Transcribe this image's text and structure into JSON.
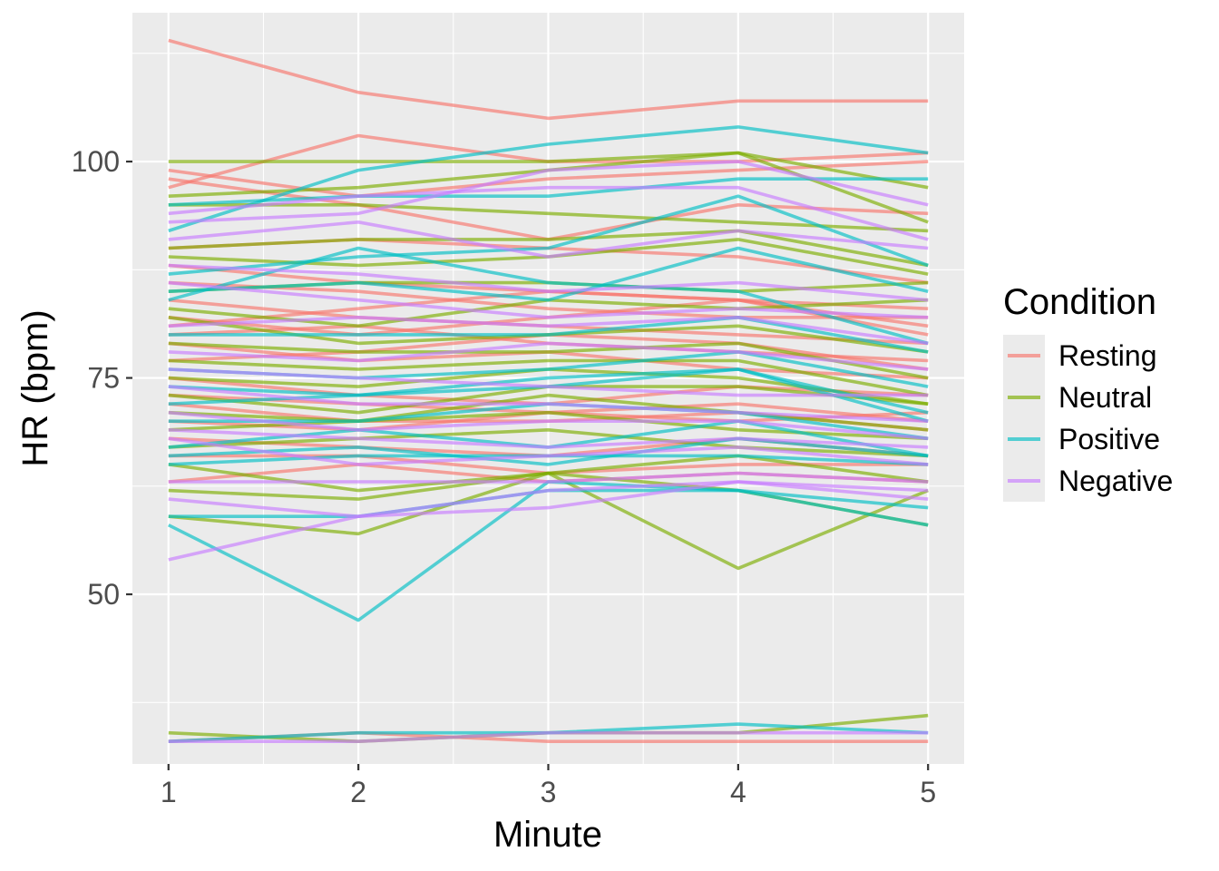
{
  "chart_data": {
    "type": "line",
    "title": "",
    "xlabel": "Minute",
    "ylabel": "HR (bpm)",
    "x": [
      1,
      2,
      3,
      4,
      5
    ],
    "xlim": [
      0.81,
      5.19
    ],
    "ylim": [
      30.4,
      117.2
    ],
    "xticks": [
      1,
      2,
      3,
      4,
      5
    ],
    "yticks": [
      50,
      75,
      100
    ],
    "grid": true,
    "legend": {
      "title": "Condition",
      "position": "right",
      "entries": [
        "Resting",
        "Neutral",
        "Positive",
        "Negative"
      ]
    },
    "colors": {
      "Resting": "#F8766D",
      "Neutral": "#7CAE00",
      "Positive": "#00BFC4",
      "Negative": "#C77CFF"
    },
    "series": [
      {
        "group": "Resting",
        "values": [
          114,
          108,
          105,
          107,
          107
        ]
      },
      {
        "group": "Resting",
        "values": [
          97,
          103,
          100,
          100,
          101
        ]
      },
      {
        "group": "Resting",
        "values": [
          99,
          96,
          98,
          99,
          100
        ]
      },
      {
        "group": "Resting",
        "values": [
          98,
          95,
          91,
          95,
          94
        ]
      },
      {
        "group": "Resting",
        "values": [
          90,
          91,
          90,
          89,
          86
        ]
      },
      {
        "group": "Resting",
        "values": [
          88,
          86,
          85,
          84,
          83
        ]
      },
      {
        "group": "Resting",
        "values": [
          86,
          85,
          83,
          82,
          82
        ]
      },
      {
        "group": "Resting",
        "values": [
          84,
          82,
          81,
          80,
          79
        ]
      },
      {
        "group": "Resting",
        "values": [
          82,
          80,
          82,
          84,
          81
        ]
      },
      {
        "group": "Resting",
        "values": [
          80,
          81,
          79,
          78,
          77
        ]
      },
      {
        "group": "Resting",
        "values": [
          79,
          77,
          78,
          76,
          75
        ]
      },
      {
        "group": "Resting",
        "values": [
          77,
          78,
          80,
          79,
          76
        ]
      },
      {
        "group": "Resting",
        "values": [
          75,
          73,
          72,
          74,
          73
        ]
      },
      {
        "group": "Resting",
        "values": [
          73,
          72,
          71,
          70,
          71
        ]
      },
      {
        "group": "Resting",
        "values": [
          72,
          70,
          70,
          71,
          69
        ]
      },
      {
        "group": "Resting",
        "values": [
          70,
          69,
          71,
          72,
          70
        ]
      },
      {
        "group": "Resting",
        "values": [
          68,
          67,
          66,
          68,
          66
        ]
      },
      {
        "group": "Resting",
        "values": [
          66,
          66,
          64,
          65,
          65
        ]
      },
      {
        "group": "Resting",
        "values": [
          63,
          65,
          63,
          64,
          63
        ]
      },
      {
        "group": "Resting",
        "values": [
          81,
          83,
          85,
          84,
          80
        ]
      },
      {
        "group": "Resting",
        "values": [
          33,
          34,
          33,
          33,
          33
        ]
      },
      {
        "group": "Neutral",
        "values": [
          100,
          100,
          100,
          101,
          97
        ]
      },
      {
        "group": "Neutral",
        "values": [
          96,
          97,
          99,
          101,
          93
        ]
      },
      {
        "group": "Neutral",
        "values": [
          95,
          95,
          94,
          93,
          92
        ]
      },
      {
        "group": "Neutral",
        "values": [
          90,
          91,
          91,
          92,
          88
        ]
      },
      {
        "group": "Neutral",
        "values": [
          89,
          88,
          89,
          91,
          87
        ]
      },
      {
        "group": "Neutral",
        "values": [
          85,
          86,
          86,
          85,
          86
        ]
      },
      {
        "group": "Neutral",
        "values": [
          83,
          81,
          84,
          83,
          84
        ]
      },
      {
        "group": "Neutral",
        "values": [
          82,
          79,
          80,
          81,
          78
        ]
      },
      {
        "group": "Neutral",
        "values": [
          79,
          78,
          78,
          79,
          75
        ]
      },
      {
        "group": "Neutral",
        "values": [
          77,
          76,
          77,
          77,
          73
        ]
      },
      {
        "group": "Neutral",
        "values": [
          75,
          74,
          76,
          75,
          72
        ]
      },
      {
        "group": "Neutral",
        "values": [
          73,
          71,
          74,
          74,
          72
        ]
      },
      {
        "group": "Neutral",
        "values": [
          71,
          70,
          73,
          71,
          69
        ]
      },
      {
        "group": "Neutral",
        "values": [
          69,
          70,
          71,
          69,
          68
        ]
      },
      {
        "group": "Neutral",
        "values": [
          67,
          68,
          69,
          67,
          66
        ]
      },
      {
        "group": "Neutral",
        "values": [
          65,
          62,
          64,
          66,
          63
        ]
      },
      {
        "group": "Neutral",
        "values": [
          62,
          61,
          64,
          62,
          58
        ]
      },
      {
        "group": "Neutral",
        "values": [
          59,
          57,
          64,
          53,
          62
        ]
      },
      {
        "group": "Neutral",
        "values": [
          34,
          33,
          34,
          34,
          36
        ]
      },
      {
        "group": "Positive",
        "values": [
          92,
          99,
          102,
          104,
          101
        ]
      },
      {
        "group": "Positive",
        "values": [
          95,
          96,
          96,
          98,
          98
        ]
      },
      {
        "group": "Positive",
        "values": [
          87,
          89,
          90,
          96,
          88
        ]
      },
      {
        "group": "Positive",
        "values": [
          85,
          86,
          84,
          90,
          85
        ]
      },
      {
        "group": "Positive",
        "values": [
          84,
          90,
          86,
          85,
          79
        ]
      },
      {
        "group": "Positive",
        "values": [
          80,
          80,
          80,
          82,
          78
        ]
      },
      {
        "group": "Positive",
        "values": [
          76,
          75,
          76,
          78,
          74
        ]
      },
      {
        "group": "Positive",
        "values": [
          74,
          73,
          75,
          76,
          71
        ]
      },
      {
        "group": "Positive",
        "values": [
          72,
          73,
          74,
          76,
          70
        ]
      },
      {
        "group": "Positive",
        "values": [
          70,
          70,
          72,
          71,
          68
        ]
      },
      {
        "group": "Positive",
        "values": [
          67,
          69,
          67,
          70,
          66
        ]
      },
      {
        "group": "Positive",
        "values": [
          66,
          67,
          65,
          68,
          66
        ]
      },
      {
        "group": "Positive",
        "values": [
          65,
          66,
          66,
          66,
          65
        ]
      },
      {
        "group": "Positive",
        "values": [
          59,
          59,
          62,
          62,
          58
        ]
      },
      {
        "group": "Positive",
        "values": [
          58,
          47,
          63,
          62,
          60
        ]
      },
      {
        "group": "Positive",
        "values": [
          33,
          34,
          34,
          35,
          34
        ]
      },
      {
        "group": "Negative",
        "values": [
          93,
          94,
          99,
          100,
          95
        ]
      },
      {
        "group": "Negative",
        "values": [
          94,
          96,
          97,
          97,
          91
        ]
      },
      {
        "group": "Negative",
        "values": [
          91,
          93,
          89,
          92,
          90
        ]
      },
      {
        "group": "Negative",
        "values": [
          88,
          87,
          85,
          86,
          84
        ]
      },
      {
        "group": "Negative",
        "values": [
          86,
          84,
          82,
          83,
          82
        ]
      },
      {
        "group": "Negative",
        "values": [
          81,
          82,
          81,
          82,
          79
        ]
      },
      {
        "group": "Negative",
        "values": [
          78,
          77,
          79,
          78,
          76
        ]
      },
      {
        "group": "Negative",
        "values": [
          76,
          75,
          74,
          73,
          73
        ]
      },
      {
        "group": "Negative",
        "values": [
          74,
          72,
          72,
          71,
          70
        ]
      },
      {
        "group": "Negative",
        "values": [
          71,
          69,
          70,
          70,
          68
        ]
      },
      {
        "group": "Negative",
        "values": [
          69,
          68,
          67,
          68,
          67
        ]
      },
      {
        "group": "Negative",
        "values": [
          68,
          65,
          66,
          67,
          65
        ]
      },
      {
        "group": "Negative",
        "values": [
          63,
          63,
          63,
          64,
          63
        ]
      },
      {
        "group": "Negative",
        "values": [
          61,
          59,
          60,
          63,
          61
        ]
      },
      {
        "group": "Negative",
        "values": [
          54,
          59,
          62,
          63,
          62
        ]
      },
      {
        "group": "Negative",
        "values": [
          33,
          33,
          34,
          34,
          34
        ]
      }
    ]
  }
}
